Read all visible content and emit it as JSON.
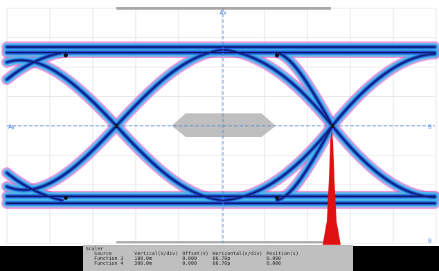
{
  "colors": {
    "background": "#ffffff",
    "grid": "#cfcfcf",
    "axis": "#4a86d8",
    "eye_core": "#0c1a6b",
    "eye_mid": "#1e4fd0",
    "eye_outer": "#3aa0e8",
    "eye_edge": "#e040c0",
    "histogram": "#e01010",
    "handle": "#a8a8a8"
  },
  "markers": {
    "top": "Ax",
    "left": "Ay",
    "right_mid": "B",
    "right_bottom": "B"
  },
  "scaler": {
    "title": "Scaler",
    "headers": [
      "Source",
      "Vertical(V/div)",
      "Offset(V)",
      "Horizontal(s/div)",
      "Position(s)"
    ],
    "rows": [
      [
        "Function 3",
        "180.0m",
        "0.000",
        "66.70p",
        "0.000"
      ],
      [
        "Function 4",
        "300.0m",
        "0.000",
        "66.70p",
        "0.000"
      ]
    ]
  }
}
